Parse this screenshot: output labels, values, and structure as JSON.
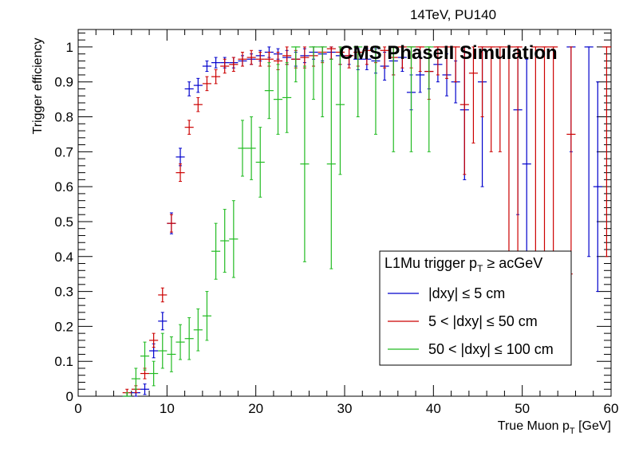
{
  "chart_data": {
    "type": "scatter",
    "top_label": "14TeV, PU140",
    "overlay_title": "CMS PhaseII Simulation",
    "xlabel_main": "True Muon p",
    "xlabel_sub": "T",
    "xlabel_unit": " [GeV]",
    "ylabel": "Trigger efficiency",
    "xlim": [
      0,
      60
    ],
    "ylim": [
      0,
      1.05
    ],
    "x_ticks": [
      0,
      10,
      20,
      30,
      40,
      50,
      60
    ],
    "y_ticks": [
      0,
      0.1,
      0.2,
      0.3,
      0.4,
      0.5,
      0.6,
      0.7,
      0.8,
      0.9,
      1
    ],
    "y_tick_labels": [
      "0",
      "0.1",
      "0.2",
      "0.3",
      "0.4",
      "0.5",
      "0.6",
      "0.7",
      "0.8",
      "0.9",
      "1"
    ],
    "legend": {
      "title_main": "L1Mu trigger p",
      "title_sub": "T",
      "title_rest": " ≥ acGeV",
      "placement": "lower-right"
    },
    "series": [
      {
        "name": "|dxy| ≤ 5 cm",
        "color": "#0000cc",
        "points": [
          [
            5.5,
            0.0,
            0.01
          ],
          [
            6.5,
            0.01,
            0.01
          ],
          [
            7.5,
            0.02,
            0.015
          ],
          [
            8.5,
            0.13,
            0.02
          ],
          [
            9.5,
            0.215,
            0.025
          ],
          [
            10.5,
            0.495,
            0.03
          ],
          [
            11.5,
            0.685,
            0.025
          ],
          [
            12.5,
            0.88,
            0.02
          ],
          [
            13.5,
            0.89,
            0.02
          ],
          [
            14.5,
            0.945,
            0.015
          ],
          [
            15.5,
            0.955,
            0.015
          ],
          [
            16.5,
            0.955,
            0.015
          ],
          [
            17.5,
            0.955,
            0.015
          ],
          [
            18.5,
            0.96,
            0.015
          ],
          [
            19.5,
            0.965,
            0.015
          ],
          [
            20.5,
            0.975,
            0.015
          ],
          [
            21.5,
            0.985,
            0.015
          ],
          [
            22.5,
            0.98,
            0.015
          ],
          [
            23.5,
            0.97,
            0.02
          ],
          [
            24.5,
            0.965,
            0.02
          ],
          [
            25.5,
            0.975,
            0.02
          ],
          [
            26.5,
            0.985,
            0.02
          ],
          [
            27.5,
            0.98,
            0.02
          ],
          [
            28.5,
            0.985,
            0.02
          ],
          [
            29.5,
            0.975,
            0.025
          ],
          [
            30.5,
            0.975,
            0.025
          ],
          [
            31.5,
            0.965,
            0.03
          ],
          [
            32.5,
            0.965,
            0.03
          ],
          [
            33.5,
            0.96,
            0.035
          ],
          [
            34.5,
            0.945,
            0.04
          ],
          [
            35.5,
            0.96,
            0.04
          ],
          [
            36.5,
            0.97,
            0.04
          ],
          [
            37.5,
            0.87,
            0.05
          ],
          [
            38.5,
            0.92,
            0.05
          ],
          [
            39.5,
            0.93,
            0.05
          ],
          [
            40.5,
            0.95,
            0.05
          ],
          [
            41.5,
            0.92,
            0.06
          ],
          [
            42.5,
            0.9,
            0.06
          ],
          [
            43.5,
            0.82,
            0.2
          ],
          [
            45.5,
            0.9,
            0.3
          ],
          [
            49.5,
            0.82,
            0.3
          ],
          [
            50.5,
            0.665,
            0.3
          ],
          [
            55.5,
            1.0,
            0.3
          ],
          [
            57.5,
            1.0,
            0.6
          ],
          [
            58.5,
            0.6,
            0.3
          ]
        ]
      },
      {
        "name": "5 < |dxy| ≤ 50 cm",
        "color": "#cc0000",
        "points": [
          [
            5.5,
            0.01,
            0.01
          ],
          [
            6.5,
            0.02,
            0.01
          ],
          [
            7.5,
            0.065,
            0.015
          ],
          [
            8.5,
            0.16,
            0.02
          ],
          [
            9.5,
            0.29,
            0.02
          ],
          [
            10.5,
            0.495,
            0.025
          ],
          [
            11.5,
            0.64,
            0.025
          ],
          [
            12.5,
            0.77,
            0.02
          ],
          [
            13.5,
            0.835,
            0.02
          ],
          [
            14.5,
            0.895,
            0.02
          ],
          [
            15.5,
            0.915,
            0.02
          ],
          [
            16.5,
            0.945,
            0.02
          ],
          [
            17.5,
            0.95,
            0.02
          ],
          [
            18.5,
            0.965,
            0.02
          ],
          [
            19.5,
            0.97,
            0.02
          ],
          [
            20.5,
            0.965,
            0.02
          ],
          [
            21.5,
            0.965,
            0.02
          ],
          [
            22.5,
            0.96,
            0.025
          ],
          [
            23.5,
            0.975,
            0.025
          ],
          [
            24.5,
            0.965,
            0.025
          ],
          [
            25.5,
            0.97,
            0.03
          ],
          [
            26.5,
            0.975,
            0.03
          ],
          [
            27.5,
            0.985,
            0.03
          ],
          [
            28.5,
            0.995,
            0.03
          ],
          [
            29.5,
            0.985,
            0.035
          ],
          [
            30.5,
            0.975,
            0.035
          ],
          [
            31.5,
            0.985,
            0.04
          ],
          [
            32.5,
            0.99,
            0.04
          ],
          [
            33.5,
            1.0,
            0.045
          ],
          [
            34.5,
            0.99,
            0.05
          ],
          [
            35.5,
            0.97,
            0.05
          ],
          [
            36.5,
            1.0,
            0.06
          ],
          [
            37.5,
            1.0,
            0.06
          ],
          [
            38.5,
            1.0,
            0.07
          ],
          [
            39.5,
            0.93,
            0.08
          ],
          [
            40.5,
            1.0,
            0.08
          ],
          [
            41.5,
            1.0,
            0.09
          ],
          [
            42.5,
            1.0,
            0.1
          ],
          [
            43.5,
            0.835,
            0.2
          ],
          [
            44.5,
            0.925,
            0.2
          ],
          [
            45.5,
            1.0,
            0.2
          ],
          [
            46.5,
            1.0,
            0.3
          ],
          [
            47.5,
            1.0,
            0.3
          ],
          [
            48.5,
            1.0,
            0.6
          ],
          [
            49.5,
            1.0,
            0.6
          ],
          [
            51.5,
            1.0,
            0.6
          ],
          [
            52.5,
            1.0,
            0.6
          ],
          [
            53.5,
            1.0,
            0.6
          ],
          [
            55.5,
            0.75,
            0.4
          ],
          [
            59.5,
            1.0,
            0.6
          ]
        ]
      },
      {
        "name": "50 < |dxy| ≤ 100 cm",
        "color": "#22bb22",
        "points": [
          [
            5.5,
            0.0,
            0.01
          ],
          [
            6.5,
            0.05,
            0.03
          ],
          [
            7.5,
            0.115,
            0.04
          ],
          [
            8.5,
            0.065,
            0.035
          ],
          [
            9.5,
            0.13,
            0.05
          ],
          [
            10.5,
            0.12,
            0.05
          ],
          [
            11.5,
            0.155,
            0.05
          ],
          [
            12.5,
            0.165,
            0.06
          ],
          [
            13.5,
            0.19,
            0.06
          ],
          [
            14.5,
            0.23,
            0.07
          ],
          [
            15.5,
            0.415,
            0.08
          ],
          [
            16.5,
            0.445,
            0.09
          ],
          [
            17.5,
            0.45,
            0.11
          ],
          [
            18.5,
            0.71,
            0.08
          ],
          [
            19.5,
            0.71,
            0.09
          ],
          [
            20.5,
            0.67,
            0.1
          ],
          [
            21.5,
            0.875,
            0.08
          ],
          [
            22.5,
            0.85,
            0.1
          ],
          [
            23.5,
            0.855,
            0.1
          ],
          [
            24.5,
            1.0,
            0.1
          ],
          [
            25.5,
            0.665,
            0.28
          ],
          [
            26.5,
            1.0,
            0.15
          ],
          [
            27.5,
            1.0,
            0.2
          ],
          [
            28.5,
            0.665,
            0.3
          ],
          [
            29.5,
            0.835,
            0.2
          ],
          [
            31.5,
            1.0,
            0.2
          ],
          [
            33.5,
            1.0,
            0.25
          ],
          [
            35.5,
            1.0,
            0.3
          ],
          [
            37.5,
            1.0,
            0.3
          ],
          [
            39.5,
            1.0,
            0.3
          ]
        ]
      }
    ],
    "grid": false
  }
}
